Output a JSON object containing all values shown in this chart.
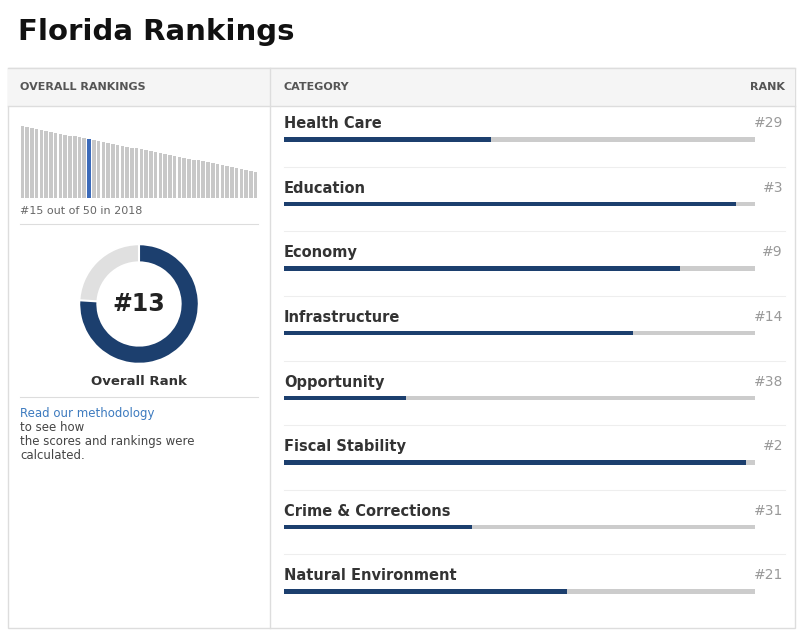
{
  "title": "Florida Rankings",
  "left_header": "OVERALL RANKINGS",
  "right_header_cat": "CATEGORY",
  "right_header_rank": "RANK",
  "overall_rank": "#13",
  "overall_rank_label": "Overall Rank",
  "bar_chart_note": "#15 out of 50 in 2018",
  "total_bars": 50,
  "highlight_bar": 15,
  "methodology_text1": "Read our methodology",
  "methodology_text2": " to see how\nthe scores and rankings were\ncalculated.",
  "categories": [
    {
      "name": "Health Care",
      "rank": "#29",
      "rank_num": 29
    },
    {
      "name": "Education",
      "rank": "#3",
      "rank_num": 3
    },
    {
      "name": "Economy",
      "rank": "#9",
      "rank_num": 9
    },
    {
      "name": "Infrastructure",
      "rank": "#14",
      "rank_num": 14
    },
    {
      "name": "Opportunity",
      "rank": "#38",
      "rank_num": 38
    },
    {
      "name": "Fiscal Stability",
      "rank": "#2",
      "rank_num": 2
    },
    {
      "name": "Crime & Corrections",
      "rank": "#31",
      "rank_num": 31
    },
    {
      "name": "Natural Environment",
      "rank": "#21",
      "rank_num": 21
    }
  ],
  "total_rank": 50,
  "colors": {
    "background": "#ffffff",
    "header_bg": "#f5f5f5",
    "dark_blue": "#1c3f6e",
    "light_gray": "#cccccc",
    "bar_gray": "#c8c8c8",
    "bar_highlight": "#3c6bba",
    "donut_blue": "#1c3f6e",
    "donut_gray": "#e0e0e0",
    "text_dark": "#333333",
    "link_blue": "#3c7abf",
    "divider": "#dddddd",
    "rank_gray": "#999999",
    "header_text": "#555555"
  },
  "donut_overall": 13,
  "donut_total": 50,
  "fig_width": 8.03,
  "fig_height": 6.36,
  "dpi": 100
}
